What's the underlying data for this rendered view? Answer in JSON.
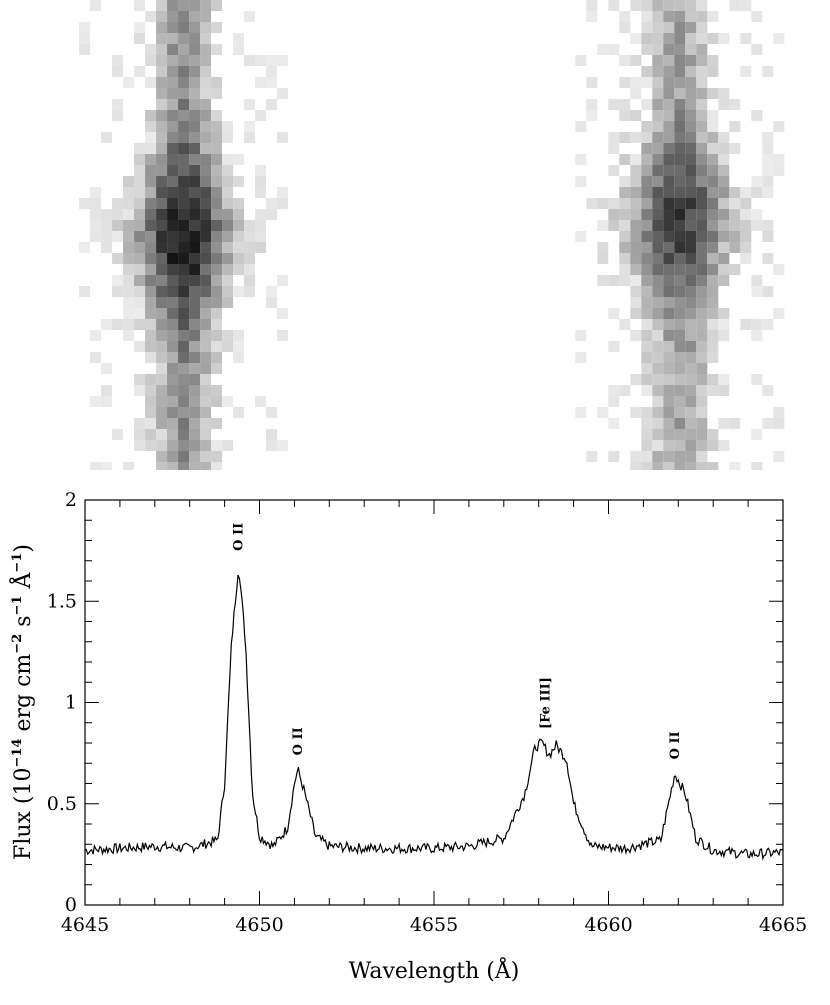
{
  "chart_data": {
    "type": "line",
    "xlabel": "Wavelength (Å)",
    "ylabel": {
      "prefix": "Flux (10",
      "exp1": "−14",
      "mid1": " erg cm",
      "exp2": "−2",
      "mid2": " s",
      "exp3": "−1",
      "mid3": " Å",
      "exp4": "−1",
      "suffix": ")"
    },
    "xlim": [
      4645,
      4665
    ],
    "ylim": [
      0,
      2
    ],
    "x_ticks": [
      "4645",
      "4650",
      "4655",
      "4660",
      "4665"
    ],
    "y_ticks": [
      "0",
      "0.5",
      "1",
      "1.5",
      "2"
    ],
    "baseline": 0.28,
    "lines": [
      {
        "label": "O II",
        "center": 4649.4,
        "peak": 1.68
      },
      {
        "label": "O II",
        "center": 4651.1,
        "peak": 0.67
      },
      {
        "label": "[Fe III]",
        "center": 4658.2,
        "peak": 0.8
      },
      {
        "label": "O II",
        "center": 4661.9,
        "peak": 0.65
      }
    ],
    "series": [
      {
        "x": [
          4645.0,
          4646.0,
          4647.0,
          4648.0,
          4648.8,
          4649.0,
          4649.2,
          4649.4,
          4649.6,
          4649.8,
          4650.0,
          4650.4,
          4650.8,
          4651.0,
          4651.1,
          4651.3,
          4651.6,
          4652.0,
          4653.0,
          4654.0,
          4655.0,
          4656.0,
          4657.0,
          4657.6,
          4657.9,
          4658.1,
          4658.3,
          4658.5,
          4658.8,
          4659.0,
          4659.5,
          4660.5,
          4661.5,
          4661.9,
          4662.2,
          4662.5,
          4663.0,
          4664.0,
          4665.0
        ],
        "y": [
          0.27,
          0.28,
          0.29,
          0.28,
          0.32,
          0.6,
          1.3,
          1.68,
          1.3,
          0.55,
          0.34,
          0.29,
          0.38,
          0.6,
          0.67,
          0.55,
          0.34,
          0.29,
          0.28,
          0.28,
          0.28,
          0.29,
          0.33,
          0.55,
          0.78,
          0.8,
          0.74,
          0.79,
          0.72,
          0.5,
          0.29,
          0.28,
          0.32,
          0.65,
          0.55,
          0.33,
          0.27,
          0.25,
          0.26
        ]
      }
    ]
  },
  "image_panel": {
    "features": [
      {
        "label": "O II",
        "intensity": 0.85
      },
      {
        "label": "O II",
        "intensity": 0.7
      }
    ]
  }
}
